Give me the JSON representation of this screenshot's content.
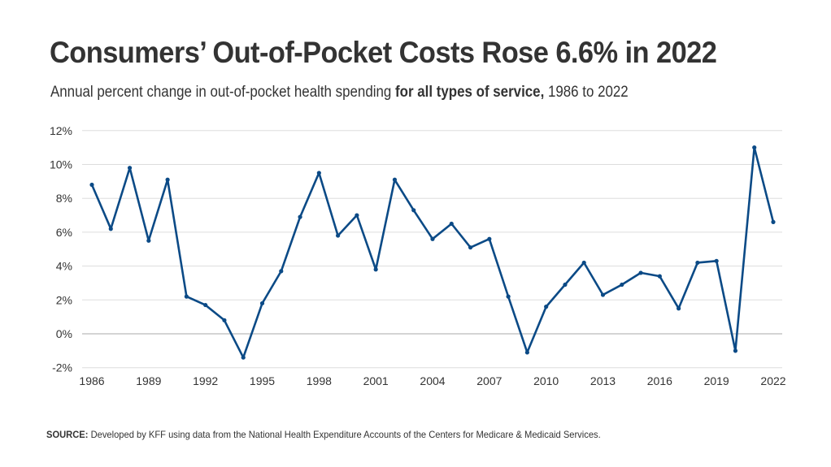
{
  "title": "Consumers’ Out-of-Pocket Costs Rose 6.6% in 2022",
  "subtitle": {
    "prefix": "Annual percent change in out-of-pocket health spending ",
    "bold": "for all types of service,",
    "suffix": " 1986 to 2022"
  },
  "source": {
    "label": "SOURCE:",
    "text": " Developed by KFF using data from the National Health Expenditure Accounts of the Centers for Medicare & Medicaid Services."
  },
  "colors": {
    "line": "#0b4a86",
    "grid": "#dddddd",
    "zero_line": "#aaaaaa",
    "text": "#333333"
  },
  "chart_data": {
    "type": "line",
    "title": "Consumers’ Out-of-Pocket Costs Rose 6.6% in 2022",
    "subtitle": "Annual percent change in out-of-pocket health spending for all types of service, 1986 to 2022",
    "xlabel": "",
    "ylabel": "",
    "x": [
      1986,
      1987,
      1988,
      1989,
      1990,
      1991,
      1992,
      1993,
      1994,
      1995,
      1996,
      1997,
      1998,
      1999,
      2000,
      2001,
      2002,
      2003,
      2004,
      2005,
      2006,
      2007,
      2008,
      2009,
      2010,
      2011,
      2012,
      2013,
      2014,
      2015,
      2016,
      2017,
      2018,
      2019,
      2020,
      2021,
      2022
    ],
    "series": [
      {
        "name": "Out-of-pocket spending annual % change",
        "values": [
          8.8,
          6.2,
          9.8,
          5.5,
          9.1,
          2.2,
          1.7,
          0.8,
          -1.4,
          1.8,
          3.7,
          6.9,
          9.5,
          5.8,
          7.0,
          3.8,
          9.1,
          7.3,
          5.6,
          6.5,
          5.1,
          5.6,
          2.2,
          -1.1,
          1.6,
          2.9,
          4.2,
          2.3,
          2.9,
          3.6,
          3.4,
          1.5,
          4.2,
          4.3,
          -1.0,
          11.0,
          6.6
        ]
      }
    ],
    "xlim": [
      1986,
      2022
    ],
    "ylim": [
      -2,
      12
    ],
    "y_ticks": [
      -2,
      0,
      2,
      4,
      6,
      8,
      10,
      12
    ],
    "y_tick_labels": [
      "-2%",
      "0%",
      "2%",
      "4%",
      "6%",
      "8%",
      "10%",
      "12%"
    ],
    "x_ticks": [
      1986,
      1989,
      1992,
      1995,
      1998,
      2001,
      2004,
      2007,
      2010,
      2013,
      2016,
      2019,
      2022
    ],
    "x_tick_labels": [
      "1986",
      "1989",
      "1992",
      "1995",
      "1998",
      "2001",
      "2004",
      "2007",
      "2010",
      "2013",
      "2016",
      "2019",
      "2022"
    ],
    "grid": true,
    "legend": "none",
    "markers": true
  }
}
